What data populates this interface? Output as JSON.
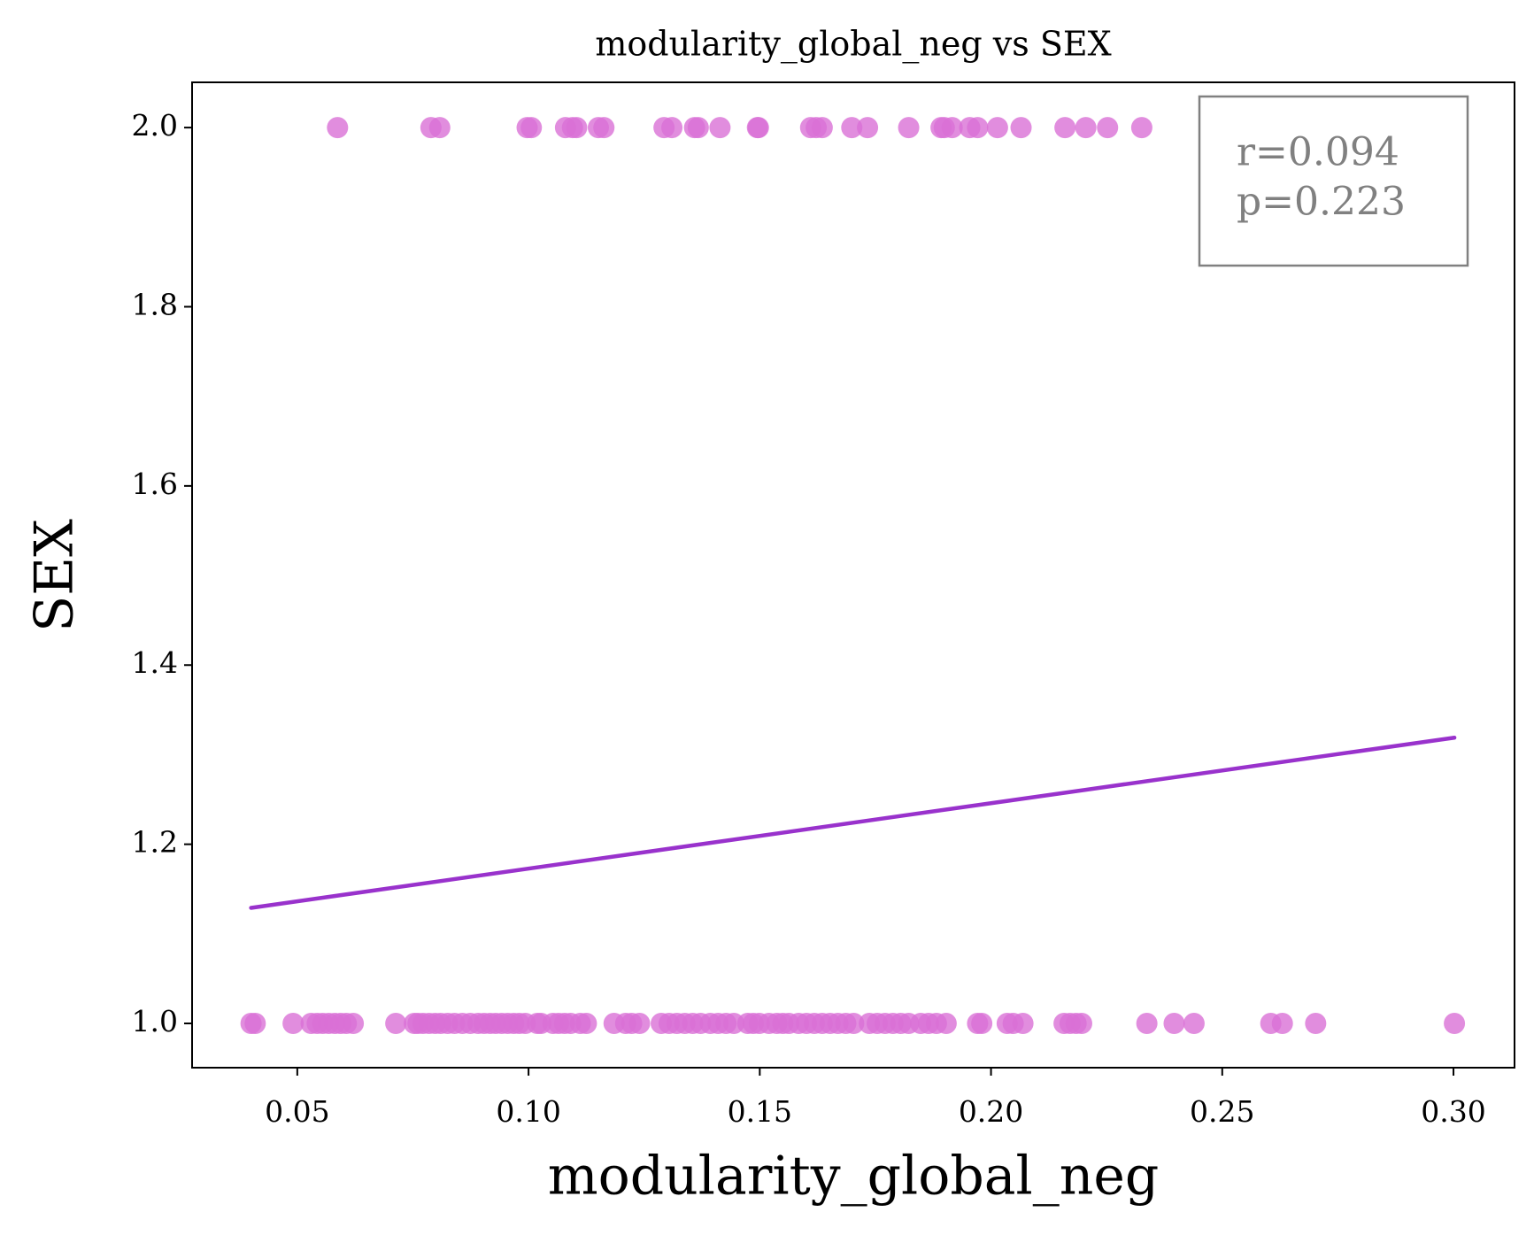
{
  "chart_data": {
    "type": "scatter",
    "title": "modularity_global_neg vs SEX",
    "xlabel": "modularity_global_neg",
    "ylabel": "SEX",
    "xlim": [
      0.02725,
      0.3132
    ],
    "ylim": [
      0.9506,
      2.0505
    ],
    "xticks": [
      0.05,
      {
        "value": 0.1,
        "label": "0.10"
      },
      0.15,
      {
        "value": 0.2,
        "label": "0.20"
      },
      0.25,
      {
        "value": 0.3,
        "label": "0.30"
      }
    ],
    "yticks": [
      {
        "value": 1.0,
        "label": "1.0"
      },
      1.2,
      1.4,
      1.6,
      1.8,
      {
        "value": 2.0,
        "label": "2.0"
      }
    ],
    "grid": false,
    "annotation": [
      "r=0.094",
      "p=0.223"
    ],
    "series": [
      {
        "kind": "points",
        "color": "#da70d6",
        "x": [
          0.0587,
          0.0789,
          0.0808,
          0.0997,
          0.1006,
          0.108,
          0.1095,
          0.1104,
          0.1151,
          0.1163,
          0.1293,
          0.131,
          0.1359,
          0.1367,
          0.1414,
          0.1495,
          0.1497,
          0.161,
          0.1622,
          0.1635,
          0.1699,
          0.1733,
          0.1822,
          0.1892,
          0.1899,
          0.1916,
          0.1954,
          0.1971,
          0.2014,
          0.2065,
          0.216,
          0.2205,
          0.2252,
          0.2326,
          0.04,
          0.0409,
          0.0491,
          0.053,
          0.0543,
          0.0555,
          0.0568,
          0.0581,
          0.0594,
          0.0606,
          0.0621,
          0.0713,
          0.0753,
          0.0761,
          0.0772,
          0.0785,
          0.0798,
          0.081,
          0.0825,
          0.084,
          0.0857,
          0.0874,
          0.0891,
          0.0904,
          0.0917,
          0.0929,
          0.0942,
          0.0955,
          0.0968,
          0.098,
          0.0993,
          0.1019,
          0.1027,
          0.1053,
          0.1065,
          0.1078,
          0.1091,
          0.1112,
          0.1125,
          0.1185,
          0.121,
          0.1223,
          0.124,
          0.1287,
          0.1304,
          0.1321,
          0.1338,
          0.1355,
          0.1372,
          0.1393,
          0.141,
          0.1427,
          0.1444,
          0.1474,
          0.1486,
          0.1499,
          0.152,
          0.1537,
          0.155,
          0.1563,
          0.1584,
          0.1601,
          0.1618,
          0.1635,
          0.1652,
          0.1669,
          0.1686,
          0.1703,
          0.1737,
          0.1754,
          0.1771,
          0.1788,
          0.1805,
          0.1822,
          0.1848,
          0.1865,
          0.1882,
          0.1903,
          0.1971,
          0.198,
          0.2035,
          0.2048,
          0.2069,
          0.2158,
          0.2171,
          0.2184,
          0.2196,
          0.2337,
          0.2396,
          0.2439,
          0.2605,
          0.263,
          0.2702,
          0.3002
        ],
        "values": [
          2,
          2,
          2,
          2,
          2,
          2,
          2,
          2,
          2,
          2,
          2,
          2,
          2,
          2,
          2,
          2,
          2,
          2,
          2,
          2,
          2,
          2,
          2,
          2,
          2,
          2,
          2,
          2,
          2,
          2,
          2,
          2,
          2,
          2,
          1,
          1,
          1,
          1,
          1,
          1,
          1,
          1,
          1,
          1,
          1,
          1,
          1,
          1,
          1,
          1,
          1,
          1,
          1,
          1,
          1,
          1,
          1,
          1,
          1,
          1,
          1,
          1,
          1,
          1,
          1,
          1,
          1,
          1,
          1,
          1,
          1,
          1,
          1,
          1,
          1,
          1,
          1,
          1,
          1,
          1,
          1,
          1,
          1,
          1,
          1,
          1,
          1,
          1,
          1,
          1,
          1,
          1,
          1,
          1,
          1,
          1,
          1,
          1,
          1,
          1,
          1,
          1,
          1,
          1,
          1,
          1,
          1,
          1,
          1,
          1,
          1,
          1,
          1,
          1,
          1,
          1,
          1,
          1,
          1,
          1,
          1,
          1,
          1,
          1,
          1,
          1,
          1,
          1
        ]
      },
      {
        "kind": "line",
        "color": "#9932cc",
        "x": [
          0.04,
          0.3002
        ],
        "values": [
          1.129,
          1.319
        ]
      }
    ]
  }
}
